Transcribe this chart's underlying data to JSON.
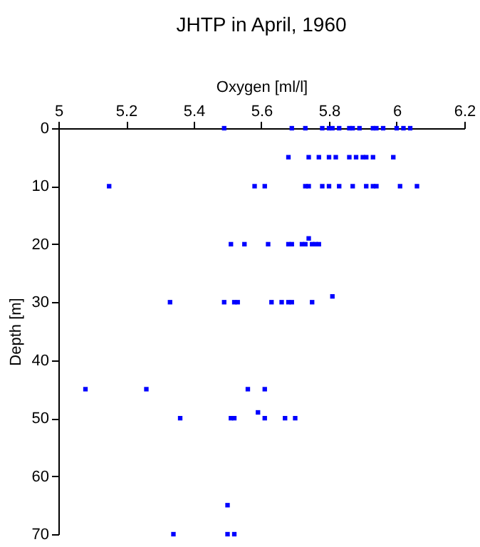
{
  "chart_data": {
    "type": "scatter",
    "title": "JHTP in April, 1960",
    "xlabel": "Oxygen [ml/l]",
    "ylabel": "Depth [m]",
    "x": [
      5.49,
      5.69,
      5.73,
      5.78,
      5.8,
      5.81,
      5.83,
      5.86,
      5.87,
      5.89,
      5.93,
      5.94,
      5.96,
      6.0,
      6.02,
      6.04,
      5.68,
      5.74,
      5.77,
      5.8,
      5.82,
      5.86,
      5.88,
      5.9,
      5.91,
      5.93,
      5.99,
      5.15,
      5.58,
      5.61,
      5.73,
      5.74,
      5.78,
      5.8,
      5.83,
      5.87,
      5.91,
      5.93,
      5.94,
      6.01,
      6.06,
      5.74,
      5.51,
      5.55,
      5.62,
      5.68,
      5.69,
      5.72,
      5.73,
      5.75,
      5.76,
      5.77,
      5.33,
      5.49,
      5.52,
      5.53,
      5.63,
      5.66,
      5.68,
      5.69,
      5.75,
      5.81,
      5.08,
      5.26,
      5.56,
      5.61,
      5.59,
      5.36,
      5.51,
      5.52,
      5.61,
      5.67,
      5.7,
      5.5,
      5.34,
      5.5,
      5.52
    ],
    "series": [
      {
        "color": "#0000ff",
        "values": [
          0,
          0,
          0,
          0,
          0,
          0,
          0,
          0,
          0,
          0,
          0,
          0,
          0,
          0,
          0,
          0,
          5,
          5,
          5,
          5,
          5,
          5,
          5,
          5,
          5,
          5,
          5,
          10,
          10,
          10,
          10,
          10,
          10,
          10,
          10,
          10,
          10,
          10,
          10,
          10,
          10,
          19,
          20,
          20,
          20,
          20,
          20,
          20,
          20,
          20,
          20,
          20,
          30,
          30,
          30,
          30,
          30,
          30,
          30,
          30,
          30,
          29,
          45,
          45,
          45,
          45,
          49,
          50,
          50,
          50,
          50,
          50,
          50,
          65,
          70,
          70,
          70
        ]
      }
    ],
    "xlim": [
      5,
      6.2
    ],
    "xticks": [
      5,
      5.2,
      5.4,
      5.6,
      5.8,
      6,
      6.2
    ],
    "ylim": [
      70,
      0
    ],
    "yticks": [
      0,
      10,
      20,
      30,
      40,
      50,
      60,
      70
    ],
    "marker": "square",
    "grid": false
  }
}
